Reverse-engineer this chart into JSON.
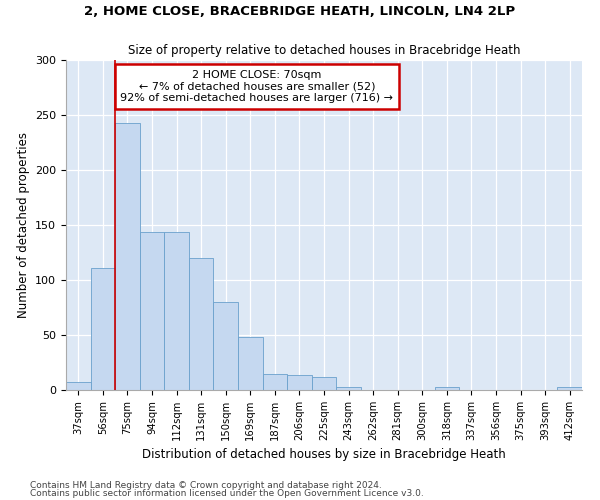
{
  "title1": "2, HOME CLOSE, BRACEBRIDGE HEATH, LINCOLN, LN4 2LP",
  "title2": "Size of property relative to detached houses in Bracebridge Heath",
  "xlabel": "Distribution of detached houses by size in Bracebridge Heath",
  "ylabel": "Number of detached properties",
  "footnote1": "Contains HM Land Registry data © Crown copyright and database right 2024.",
  "footnote2": "Contains public sector information licensed under the Open Government Licence v3.0.",
  "categories": [
    "37sqm",
    "56sqm",
    "75sqm",
    "94sqm",
    "112sqm",
    "131sqm",
    "150sqm",
    "169sqm",
    "187sqm",
    "206sqm",
    "225sqm",
    "243sqm",
    "262sqm",
    "281sqm",
    "300sqm",
    "318sqm",
    "337sqm",
    "356sqm",
    "375sqm",
    "393sqm",
    "412sqm"
  ],
  "values": [
    7,
    111,
    243,
    144,
    144,
    120,
    80,
    48,
    15,
    14,
    12,
    3,
    0,
    0,
    0,
    3,
    0,
    0,
    0,
    0,
    3
  ],
  "bar_color": "#c5d8f0",
  "bar_edge_color": "#6aa0cc",
  "annotation_text_line1": "2 HOME CLOSE: 70sqm",
  "annotation_text_line2": "← 7% of detached houses are smaller (52)",
  "annotation_text_line3": "92% of semi-detached houses are larger (716) →",
  "annotation_box_facecolor": "#ffffff",
  "annotation_box_edgecolor": "#cc0000",
  "vline_color": "#cc0000",
  "vline_x_index": 2.0,
  "background_color": "#dde8f5",
  "ylim": [
    0,
    300
  ],
  "yticks": [
    0,
    50,
    100,
    150,
    200,
    250,
    300
  ]
}
